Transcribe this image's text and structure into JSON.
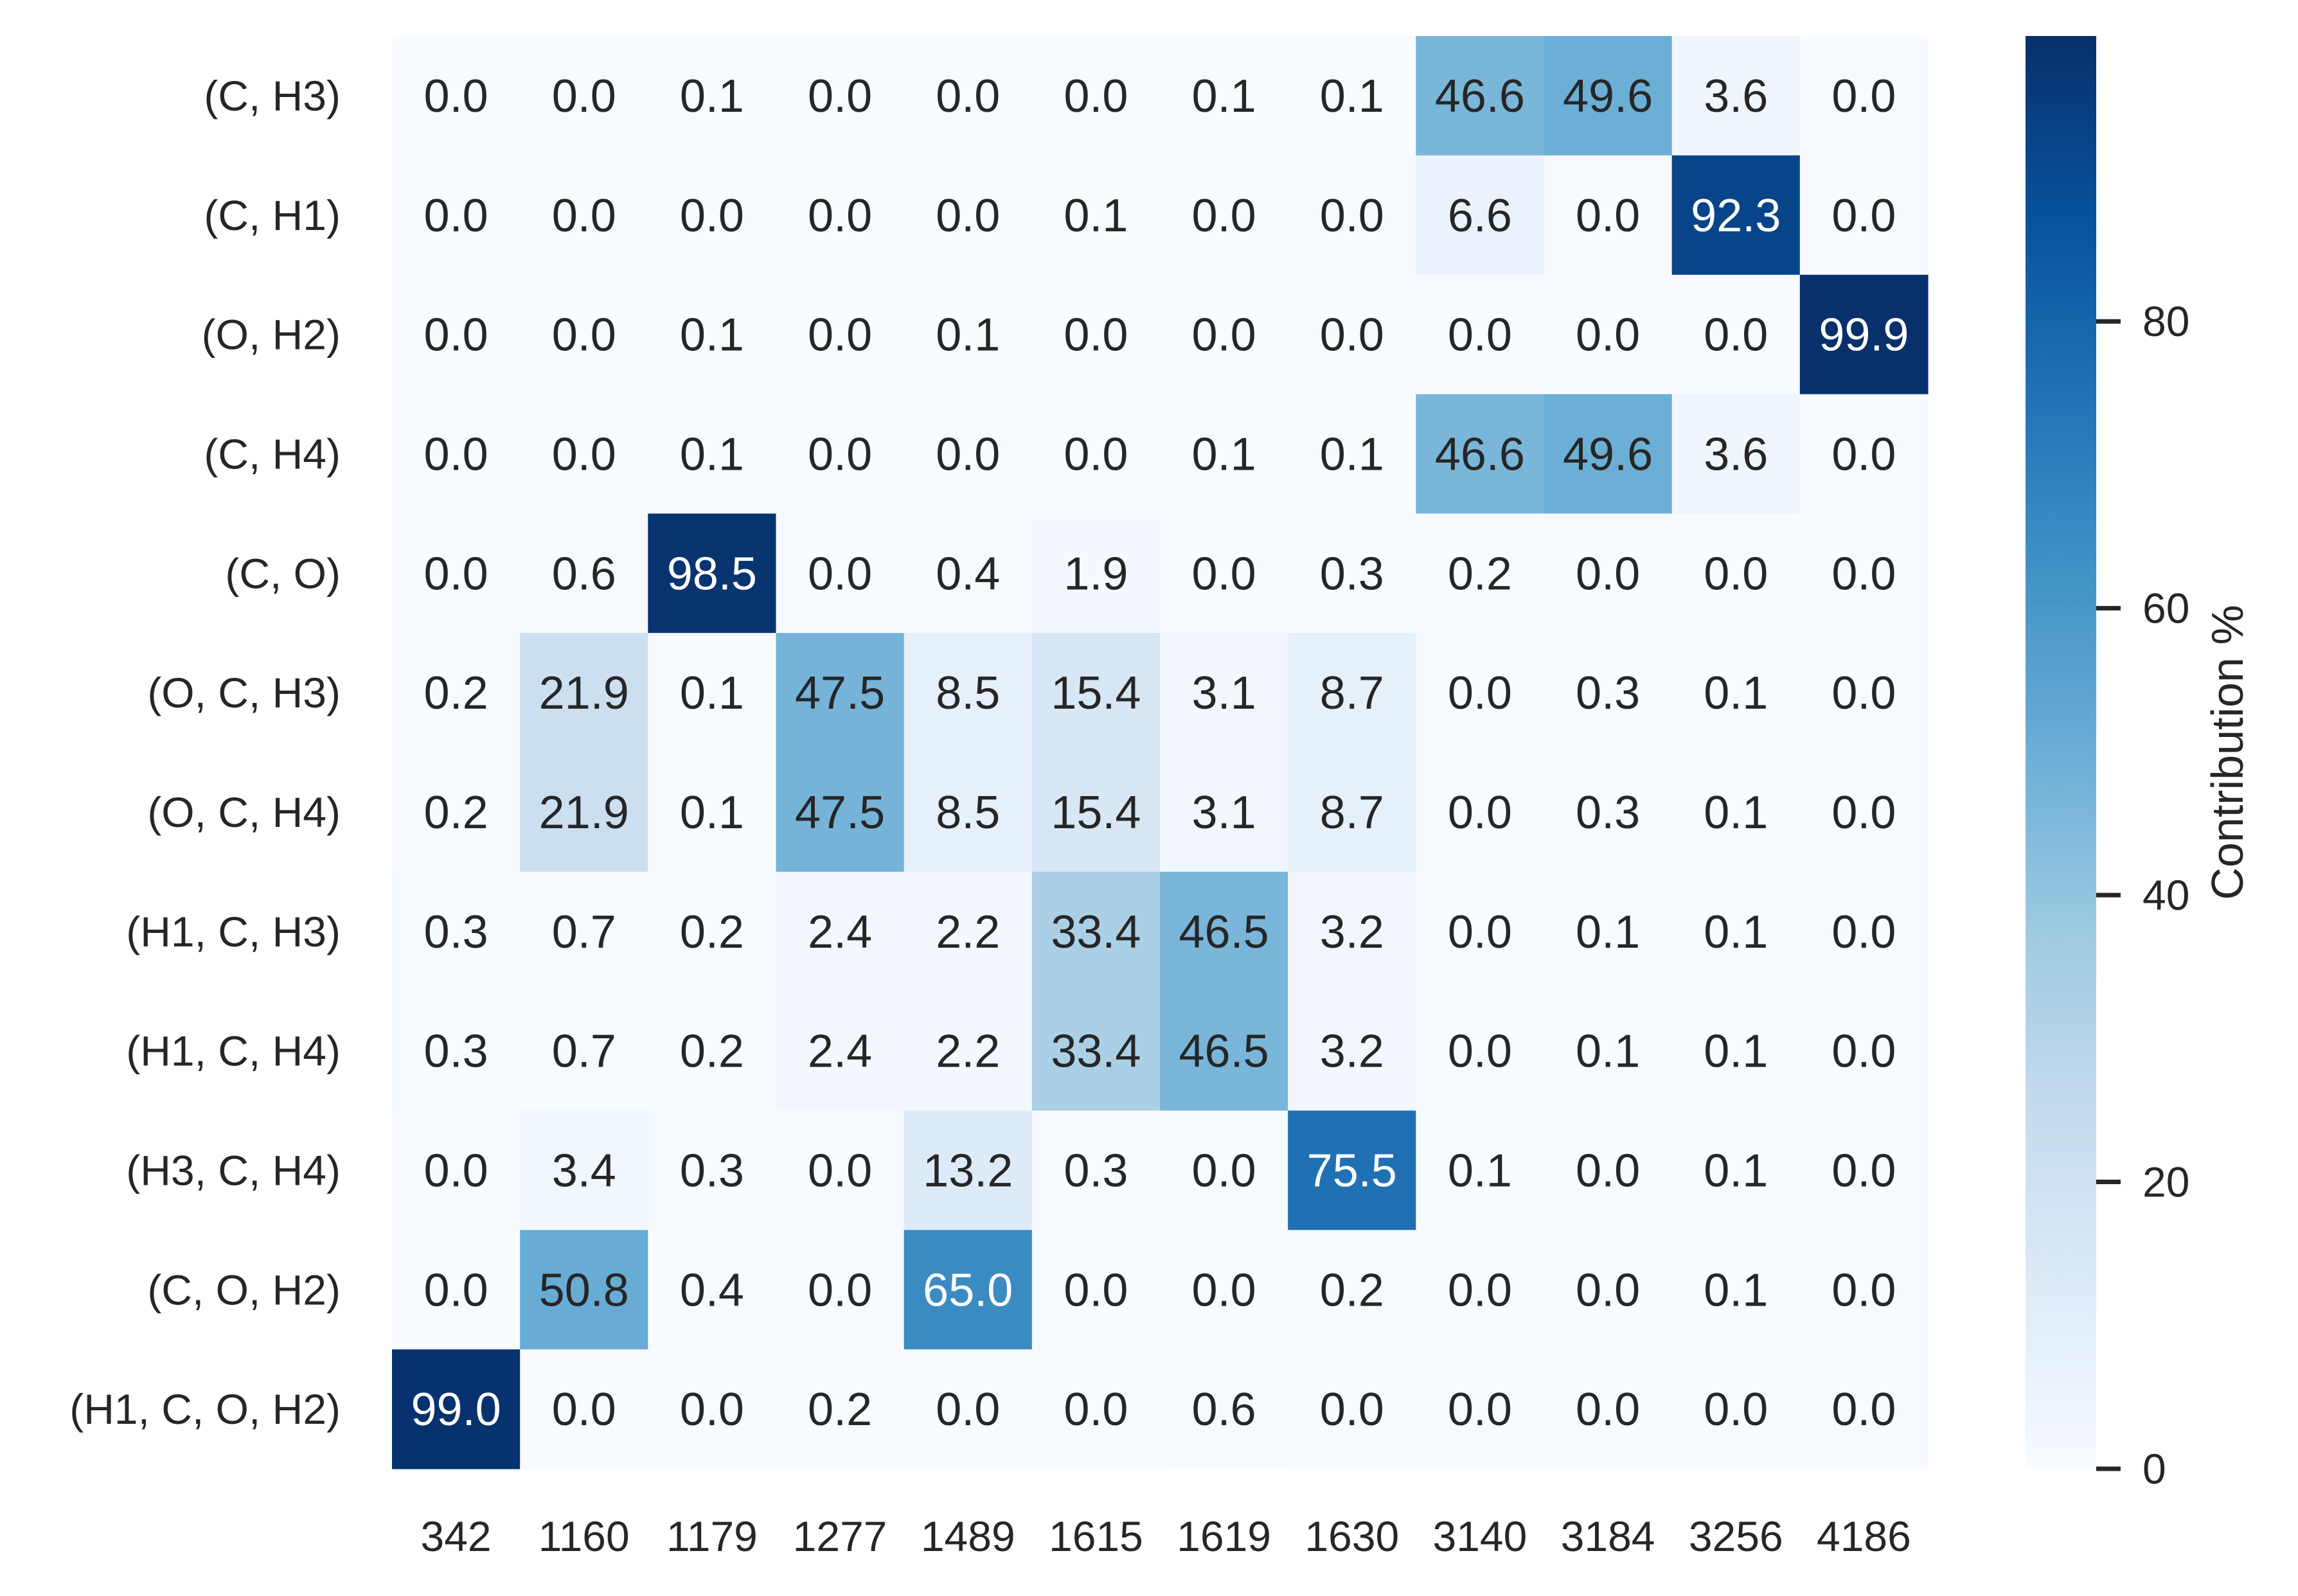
{
  "chart_data": {
    "type": "heatmap",
    "title": "",
    "xlabel": "",
    "ylabel": "",
    "colormap": "Blues",
    "colorbar": {
      "label": "Contribution %",
      "range": [
        0,
        99.9
      ],
      "ticks": [
        0,
        20,
        40,
        60,
        80
      ]
    },
    "rows": [
      "(C, H3)",
      "(C, H1)",
      "(O, H2)",
      "(C, H4)",
      "(C, O)",
      "(O, C, H3)",
      "(O, C, H4)",
      "(H1, C, H3)",
      "(H1, C, H4)",
      "(H3, C, H4)",
      "(C, O, H2)",
      "(H1, C, O, H2)"
    ],
    "columns": [
      "342",
      "1160",
      "1179",
      "1277",
      "1489",
      "1615",
      "1619",
      "1630",
      "3140",
      "3184",
      "3256",
      "4186"
    ],
    "values": [
      [
        0.0,
        0.0,
        0.1,
        0.0,
        0.0,
        0.0,
        0.1,
        0.1,
        46.6,
        49.6,
        3.6,
        0.0
      ],
      [
        0.0,
        0.0,
        0.0,
        0.0,
        0.0,
        0.1,
        0.0,
        0.0,
        6.6,
        0.0,
        92.3,
        0.0
      ],
      [
        0.0,
        0.0,
        0.1,
        0.0,
        0.1,
        0.0,
        0.0,
        0.0,
        0.0,
        0.0,
        0.0,
        99.9
      ],
      [
        0.0,
        0.0,
        0.1,
        0.0,
        0.0,
        0.0,
        0.1,
        0.1,
        46.6,
        49.6,
        3.6,
        0.0
      ],
      [
        0.0,
        0.6,
        98.5,
        0.0,
        0.4,
        1.9,
        0.0,
        0.3,
        0.2,
        0.0,
        0.0,
        0.0
      ],
      [
        0.2,
        21.9,
        0.1,
        47.5,
        8.5,
        15.4,
        3.1,
        8.7,
        0.0,
        0.3,
        0.1,
        0.0
      ],
      [
        0.2,
        21.9,
        0.1,
        47.5,
        8.5,
        15.4,
        3.1,
        8.7,
        0.0,
        0.3,
        0.1,
        0.0
      ],
      [
        0.3,
        0.7,
        0.2,
        2.4,
        2.2,
        33.4,
        46.5,
        3.2,
        0.0,
        0.1,
        0.1,
        0.0
      ],
      [
        0.3,
        0.7,
        0.2,
        2.4,
        2.2,
        33.4,
        46.5,
        3.2,
        0.0,
        0.1,
        0.1,
        0.0
      ],
      [
        0.0,
        3.4,
        0.3,
        0.0,
        13.2,
        0.3,
        0.0,
        75.5,
        0.1,
        0.0,
        0.1,
        0.0
      ],
      [
        0.0,
        50.8,
        0.4,
        0.0,
        65.0,
        0.0,
        0.0,
        0.2,
        0.0,
        0.0,
        0.1,
        0.0
      ],
      [
        99.0,
        0.0,
        0.0,
        0.2,
        0.0,
        0.0,
        0.6,
        0.0,
        0.0,
        0.0,
        0.0,
        0.0
      ]
    ],
    "grid": false,
    "legend": "colorbar-right"
  }
}
